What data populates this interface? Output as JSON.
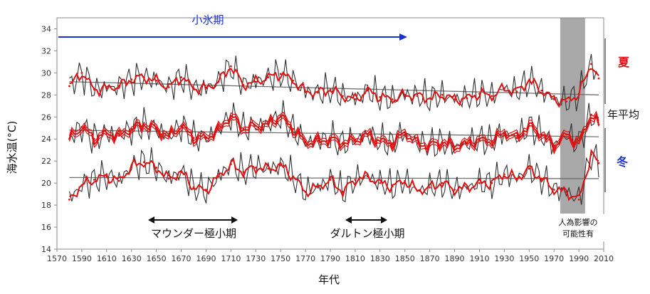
{
  "colors": {
    "raw": "#303030",
    "smooth": "#e01010",
    "trend": "#707070",
    "accent_red": "#e01010",
    "accent_blue": "#1a2fd6",
    "shade": "#a8a8a8"
  },
  "labels": {
    "ylabel": "海水温(°C)",
    "xlabel": "年代",
    "little_ice_age": "小氷期",
    "maunder": "マウンダー極小期",
    "dalton": "ダルトン極小期",
    "summer": "夏",
    "annual": "年平均",
    "winter": "冬",
    "human_line1": "人為影響の",
    "human_line2": "可能性有"
  },
  "chart_data": {
    "type": "line",
    "title": "",
    "xlabel": "年代",
    "ylabel": "海水温(°C)",
    "xlim": [
      1570,
      2010
    ],
    "ylim": [
      14,
      35
    ],
    "x_ticks": [
      1570,
      1590,
      1610,
      1630,
      1650,
      1670,
      1690,
      1710,
      1730,
      1750,
      1770,
      1790,
      1810,
      1830,
      1850,
      1870,
      1890,
      1910,
      1930,
      1950,
      1970,
      1990,
      2010
    ],
    "y_ticks": [
      14,
      16,
      18,
      20,
      22,
      24,
      26,
      28,
      30,
      32,
      34
    ],
    "series": [
      {
        "name": "夏",
        "x": [
          1580,
          1590,
          1600,
          1610,
          1620,
          1630,
          1640,
          1650,
          1660,
          1670,
          1680,
          1690,
          1700,
          1710,
          1720,
          1730,
          1740,
          1750,
          1760,
          1770,
          1780,
          1790,
          1800,
          1810,
          1820,
          1830,
          1840,
          1850,
          1860,
          1870,
          1880,
          1890,
          1900,
          1910,
          1920,
          1930,
          1940,
          1950,
          1960,
          1970,
          1980,
          1990,
          2000,
          2006
        ],
        "values": [
          28.8,
          30.0,
          28.5,
          28.6,
          28.8,
          29.4,
          29.6,
          29.3,
          28.7,
          29.6,
          28.6,
          28.6,
          29.2,
          30.6,
          28.9,
          29.2,
          29.6,
          29.9,
          29.3,
          28.3,
          28.2,
          28.5,
          27.9,
          27.6,
          28.4,
          27.8,
          27.6,
          28.0,
          27.9,
          27.7,
          28.0,
          27.6,
          27.7,
          28.1,
          27.9,
          28.6,
          28.3,
          29.3,
          28.4,
          27.6,
          27.4,
          28.1,
          30.8,
          29.5
        ]
      },
      {
        "name": "年平均",
        "x": [
          1580,
          1590,
          1600,
          1610,
          1620,
          1630,
          1640,
          1650,
          1660,
          1670,
          1680,
          1690,
          1700,
          1710,
          1720,
          1730,
          1740,
          1750,
          1760,
          1770,
          1780,
          1790,
          1800,
          1810,
          1820,
          1830,
          1840,
          1850,
          1860,
          1870,
          1880,
          1890,
          1900,
          1910,
          1920,
          1930,
          1940,
          1950,
          1960,
          1970,
          1980,
          1990,
          2000,
          2006
        ],
        "values": [
          24.0,
          25.1,
          24.0,
          24.5,
          24.3,
          24.9,
          25.3,
          24.9,
          24.2,
          25.2,
          24.1,
          24.1,
          24.8,
          26.1,
          24.9,
          25.2,
          25.3,
          26.1,
          24.9,
          23.7,
          23.8,
          24.0,
          23.6,
          23.9,
          24.4,
          23.8,
          23.6,
          24.6,
          23.6,
          23.4,
          23.7,
          23.3,
          23.6,
          23.9,
          23.8,
          24.6,
          24.1,
          25.2,
          24.4,
          23.4,
          24.4,
          23.6,
          26.2,
          25.3
        ]
      },
      {
        "name": "冬",
        "x": [
          1580,
          1590,
          1600,
          1610,
          1620,
          1630,
          1640,
          1650,
          1660,
          1670,
          1680,
          1690,
          1700,
          1710,
          1720,
          1730,
          1740,
          1750,
          1760,
          1770,
          1780,
          1790,
          1800,
          1810,
          1820,
          1830,
          1840,
          1850,
          1860,
          1870,
          1880,
          1890,
          1900,
          1910,
          1920,
          1930,
          1940,
          1950,
          1960,
          1970,
          1980,
          1990,
          2000,
          2006
        ],
        "values": [
          18.5,
          19.8,
          20.3,
          20.6,
          20.2,
          21.5,
          21.9,
          21.4,
          20.4,
          21.0,
          19.6,
          19.3,
          20.6,
          21.7,
          21.0,
          21.4,
          21.3,
          21.6,
          20.6,
          19.2,
          19.6,
          20.3,
          19.2,
          20.3,
          20.6,
          20.0,
          19.7,
          20.2,
          19.3,
          19.6,
          20.0,
          19.4,
          19.6,
          20.0,
          20.0,
          20.8,
          20.4,
          21.3,
          20.4,
          19.4,
          19.2,
          18.5,
          22.6,
          21.8
        ]
      }
    ],
    "trend_lines": [
      {
        "name": "夏",
        "x": [
          1580,
          2006
        ],
        "values": [
          29.2,
          28.0
        ]
      },
      {
        "name": "年平均",
        "x": [
          1580,
          2006
        ],
        "values": [
          24.8,
          24.2
        ]
      },
      {
        "name": "冬",
        "x": [
          1580,
          2006
        ],
        "values": [
          20.5,
          20.4
        ]
      }
    ],
    "annotations": [
      {
        "text": "小氷期",
        "x_range": [
          1575,
          1855
        ]
      },
      {
        "text": "マウンダー極小期",
        "x_range": [
          1645,
          1715
        ]
      },
      {
        "text": "ダルトン極小期",
        "x_range": [
          1796,
          1830
        ]
      },
      {
        "text": "人為影響の可能性有",
        "x_range": [
          1975,
          1995
        ]
      }
    ],
    "grid": false,
    "legend": "right"
  }
}
